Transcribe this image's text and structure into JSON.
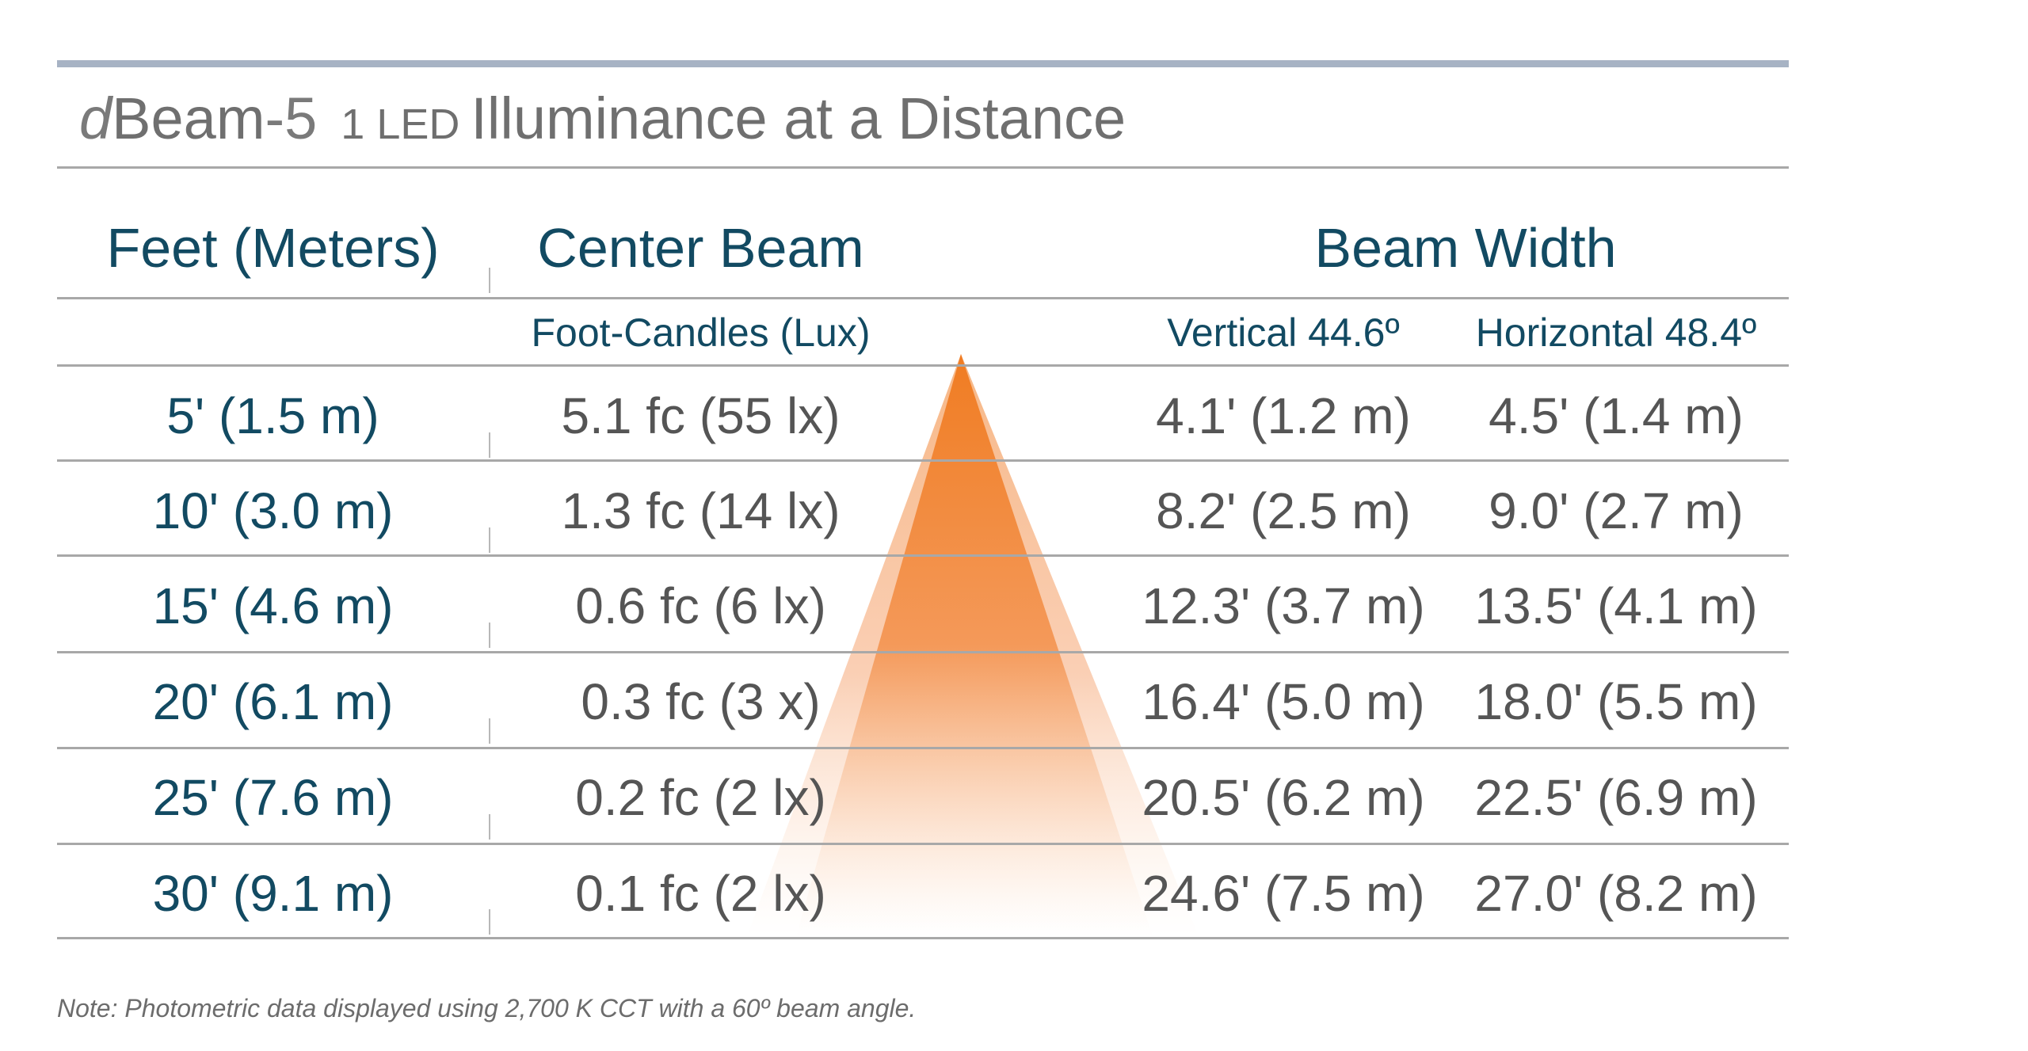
{
  "title": {
    "brand_d": "d",
    "brand_beam": "Beam",
    "brand_num": "-5",
    "led_label": "1 LED",
    "heading": "Illuminance at a Distance"
  },
  "headers": {
    "distance": "Feet (Meters)",
    "center_beam": "Center Beam",
    "beam_width": "Beam Width"
  },
  "subheaders": {
    "center_beam_units": "Foot-Candles (Lux)",
    "vertical": "Vertical 44.6º",
    "horizontal": "Horizontal 48.4º"
  },
  "rows": [
    {
      "distance": "5' (1.5 m)",
      "center": "5.1 fc (55 lx)",
      "vertical": "4.1' (1.2 m)",
      "horizontal": "4.5' (1.4 m)"
    },
    {
      "distance": "10' (3.0 m)",
      "center": "1.3 fc (14 lx)",
      "vertical": "8.2' (2.5 m)",
      "horizontal": "9.0' (2.7 m)"
    },
    {
      "distance": "15' (4.6 m)",
      "center": "0.6 fc (6 lx)",
      "vertical": "12.3' (3.7 m)",
      "horizontal": "13.5' (4.1 m)"
    },
    {
      "distance": "20' (6.1 m)",
      "center": "0.3 fc (3 x)",
      "vertical": "16.4' (5.0 m)",
      "horizontal": "18.0' (5.5 m)"
    },
    {
      "distance": "25' (7.6 m)",
      "center": "0.2 fc (2 lx)",
      "vertical": "20.5' (6.2 m)",
      "horizontal": "22.5' (6.9 m)"
    },
    {
      "distance": "30' (9.1 m)",
      "center": "0.1 fc (2 lx)",
      "vertical": "24.6' (7.5 m)",
      "horizontal": "27.0' (8.2 m)"
    }
  ],
  "note": "Note: Photometric data displayed using 2,700 K CCT with a 60º beam angle.",
  "colors": {
    "header_text": "#124a62",
    "value_text": "#555555",
    "beam_orange": "#f07c22",
    "rule": "#a8a8a8",
    "top_bar": "#a7b3c4"
  }
}
